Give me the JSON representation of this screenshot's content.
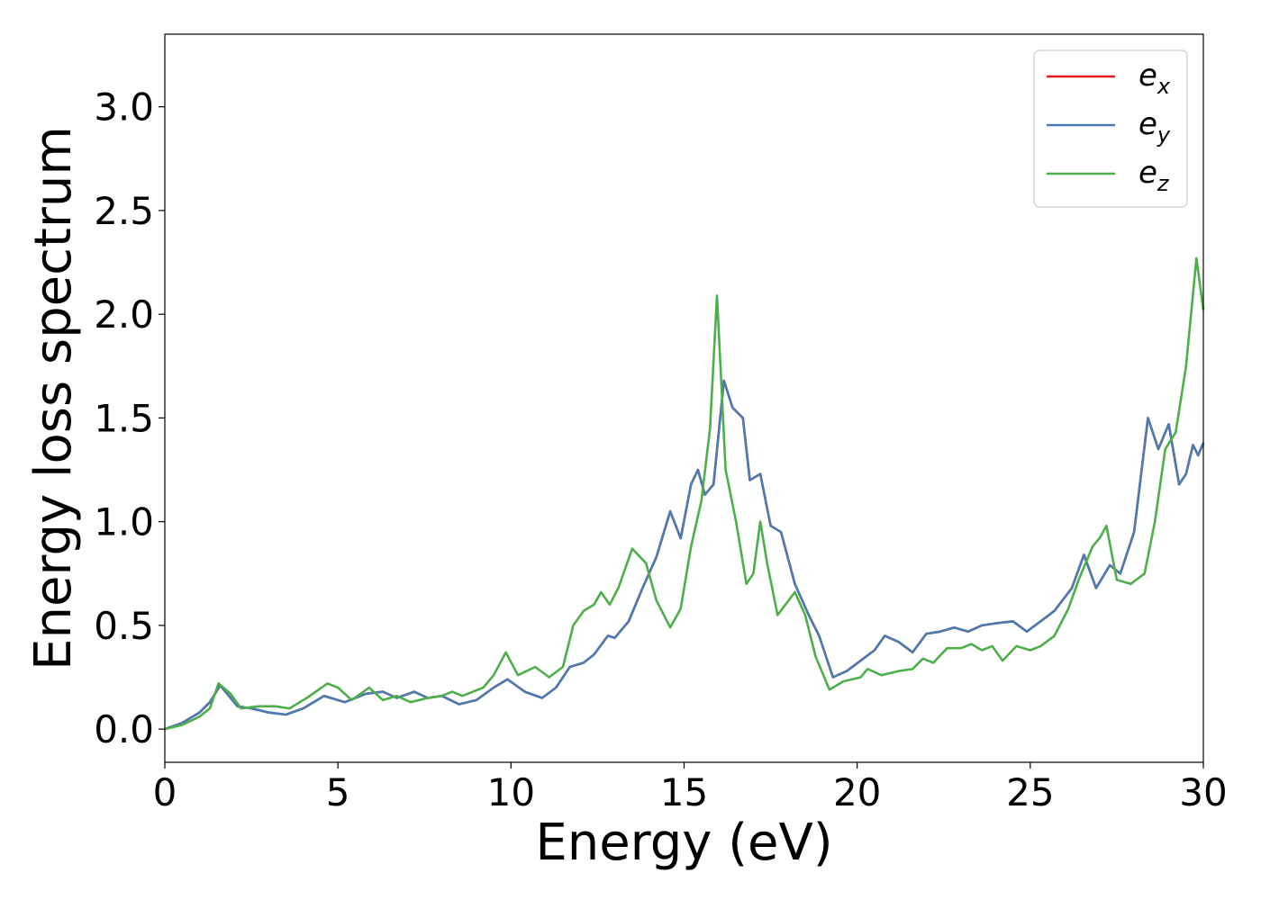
{
  "chart_data": {
    "type": "line",
    "title": "",
    "xlabel": "Energy (eV)",
    "ylabel": "Energy loss spectrum",
    "xlim": [
      0,
      30
    ],
    "ylim": [
      -0.16,
      3.35
    ],
    "xticks": [
      0,
      5,
      10,
      15,
      20,
      25,
      30
    ],
    "xtick_labels": [
      "0",
      "5",
      "10",
      "15",
      "20",
      "25",
      "30"
    ],
    "yticks": [
      0.0,
      0.5,
      1.0,
      1.5,
      2.0,
      2.5,
      3.0
    ],
    "ytick_labels": [
      "0.0",
      "0.5",
      "1.0",
      "1.5",
      "2.0",
      "2.5",
      "3.0"
    ],
    "grid": false,
    "legend_position": "top-right",
    "series": [
      {
        "name": "e_x",
        "legend_base": "e",
        "legend_sub": "x",
        "color": "#e41a1c",
        "points": [
          [
            0,
            0
          ],
          [
            0.5,
            0.03
          ],
          [
            1.0,
            0.08
          ],
          [
            1.3,
            0.13
          ],
          [
            1.6,
            0.21
          ],
          [
            1.8,
            0.17
          ],
          [
            2.1,
            0.11
          ],
          [
            2.5,
            0.1
          ],
          [
            3.0,
            0.08
          ],
          [
            3.5,
            0.07
          ],
          [
            4.0,
            0.1
          ],
          [
            4.6,
            0.16
          ],
          [
            5.2,
            0.13
          ],
          [
            5.8,
            0.17
          ],
          [
            6.3,
            0.18
          ],
          [
            6.7,
            0.15
          ],
          [
            7.2,
            0.18
          ],
          [
            7.6,
            0.15
          ],
          [
            8.0,
            0.16
          ],
          [
            8.5,
            0.12
          ],
          [
            9.0,
            0.14
          ],
          [
            9.5,
            0.2
          ],
          [
            9.9,
            0.24
          ],
          [
            10.4,
            0.18
          ],
          [
            10.9,
            0.15
          ],
          [
            11.3,
            0.2
          ],
          [
            11.7,
            0.3
          ],
          [
            12.1,
            0.32
          ],
          [
            12.4,
            0.36
          ],
          [
            12.8,
            0.45
          ],
          [
            13.0,
            0.44
          ],
          [
            13.4,
            0.52
          ],
          [
            13.8,
            0.68
          ],
          [
            14.2,
            0.83
          ],
          [
            14.6,
            1.05
          ],
          [
            14.9,
            0.92
          ],
          [
            15.2,
            1.18
          ],
          [
            15.4,
            1.25
          ],
          [
            15.6,
            1.13
          ],
          [
            15.85,
            1.18
          ],
          [
            16.15,
            1.68
          ],
          [
            16.4,
            1.55
          ],
          [
            16.7,
            1.5
          ],
          [
            16.9,
            1.2
          ],
          [
            17.2,
            1.23
          ],
          [
            17.5,
            0.98
          ],
          [
            17.8,
            0.95
          ],
          [
            18.2,
            0.7
          ],
          [
            18.6,
            0.55
          ],
          [
            18.9,
            0.45
          ],
          [
            19.3,
            0.25
          ],
          [
            19.7,
            0.28
          ],
          [
            20.1,
            0.33
          ],
          [
            20.5,
            0.38
          ],
          [
            20.8,
            0.45
          ],
          [
            21.2,
            0.42
          ],
          [
            21.6,
            0.37
          ],
          [
            22.0,
            0.46
          ],
          [
            22.4,
            0.47
          ],
          [
            22.8,
            0.49
          ],
          [
            23.2,
            0.47
          ],
          [
            23.6,
            0.5
          ],
          [
            24.0,
            0.51
          ],
          [
            24.5,
            0.52
          ],
          [
            24.9,
            0.47
          ],
          [
            25.3,
            0.52
          ],
          [
            25.7,
            0.57
          ],
          [
            26.2,
            0.68
          ],
          [
            26.55,
            0.84
          ],
          [
            26.9,
            0.68
          ],
          [
            27.3,
            0.79
          ],
          [
            27.6,
            0.75
          ],
          [
            28.0,
            0.95
          ],
          [
            28.4,
            1.5
          ],
          [
            28.7,
            1.35
          ],
          [
            29.0,
            1.47
          ],
          [
            29.3,
            1.18
          ],
          [
            29.5,
            1.23
          ],
          [
            29.7,
            1.37
          ],
          [
            29.85,
            1.32
          ],
          [
            30,
            1.38
          ]
        ]
      },
      {
        "name": "e_y",
        "legend_base": "e",
        "legend_sub": "y",
        "color": "#4a7cb3",
        "points": [
          [
            0,
            0
          ],
          [
            0.5,
            0.03
          ],
          [
            1.0,
            0.08
          ],
          [
            1.3,
            0.13
          ],
          [
            1.6,
            0.21
          ],
          [
            1.8,
            0.17
          ],
          [
            2.1,
            0.11
          ],
          [
            2.5,
            0.1
          ],
          [
            3.0,
            0.08
          ],
          [
            3.5,
            0.07
          ],
          [
            4.0,
            0.1
          ],
          [
            4.6,
            0.16
          ],
          [
            5.2,
            0.13
          ],
          [
            5.8,
            0.17
          ],
          [
            6.3,
            0.18
          ],
          [
            6.7,
            0.15
          ],
          [
            7.2,
            0.18
          ],
          [
            7.6,
            0.15
          ],
          [
            8.0,
            0.16
          ],
          [
            8.5,
            0.12
          ],
          [
            9.0,
            0.14
          ],
          [
            9.5,
            0.2
          ],
          [
            9.9,
            0.24
          ],
          [
            10.4,
            0.18
          ],
          [
            10.9,
            0.15
          ],
          [
            11.3,
            0.2
          ],
          [
            11.7,
            0.3
          ],
          [
            12.1,
            0.32
          ],
          [
            12.4,
            0.36
          ],
          [
            12.8,
            0.45
          ],
          [
            13.0,
            0.44
          ],
          [
            13.4,
            0.52
          ],
          [
            13.8,
            0.68
          ],
          [
            14.2,
            0.83
          ],
          [
            14.6,
            1.05
          ],
          [
            14.9,
            0.92
          ],
          [
            15.2,
            1.18
          ],
          [
            15.4,
            1.25
          ],
          [
            15.6,
            1.13
          ],
          [
            15.85,
            1.18
          ],
          [
            16.15,
            1.68
          ],
          [
            16.4,
            1.55
          ],
          [
            16.7,
            1.5
          ],
          [
            16.9,
            1.2
          ],
          [
            17.2,
            1.23
          ],
          [
            17.5,
            0.98
          ],
          [
            17.8,
            0.95
          ],
          [
            18.2,
            0.7
          ],
          [
            18.6,
            0.55
          ],
          [
            18.9,
            0.45
          ],
          [
            19.3,
            0.25
          ],
          [
            19.7,
            0.28
          ],
          [
            20.1,
            0.33
          ],
          [
            20.5,
            0.38
          ],
          [
            20.8,
            0.45
          ],
          [
            21.2,
            0.42
          ],
          [
            21.6,
            0.37
          ],
          [
            22.0,
            0.46
          ],
          [
            22.4,
            0.47
          ],
          [
            22.8,
            0.49
          ],
          [
            23.2,
            0.47
          ],
          [
            23.6,
            0.5
          ],
          [
            24.0,
            0.51
          ],
          [
            24.5,
            0.52
          ],
          [
            24.9,
            0.47
          ],
          [
            25.3,
            0.52
          ],
          [
            25.7,
            0.57
          ],
          [
            26.2,
            0.68
          ],
          [
            26.55,
            0.84
          ],
          [
            26.9,
            0.68
          ],
          [
            27.3,
            0.79
          ],
          [
            27.6,
            0.75
          ],
          [
            28.0,
            0.95
          ],
          [
            28.4,
            1.5
          ],
          [
            28.7,
            1.35
          ],
          [
            29.0,
            1.47
          ],
          [
            29.3,
            1.18
          ],
          [
            29.5,
            1.23
          ],
          [
            29.7,
            1.37
          ],
          [
            29.85,
            1.32
          ],
          [
            30,
            1.38
          ]
        ]
      },
      {
        "name": "e_z",
        "legend_base": "e",
        "legend_sub": "z",
        "color": "#4daf4a",
        "points": [
          [
            0,
            0
          ],
          [
            0.5,
            0.02
          ],
          [
            1.0,
            0.06
          ],
          [
            1.3,
            0.1
          ],
          [
            1.55,
            0.22
          ],
          [
            1.9,
            0.17
          ],
          [
            2.2,
            0.1
          ],
          [
            2.7,
            0.11
          ],
          [
            3.2,
            0.11
          ],
          [
            3.6,
            0.1
          ],
          [
            4.1,
            0.15
          ],
          [
            4.7,
            0.22
          ],
          [
            5.0,
            0.2
          ],
          [
            5.4,
            0.14
          ],
          [
            5.9,
            0.2
          ],
          [
            6.3,
            0.14
          ],
          [
            6.7,
            0.16
          ],
          [
            7.1,
            0.13
          ],
          [
            7.6,
            0.15
          ],
          [
            8.0,
            0.16
          ],
          [
            8.3,
            0.18
          ],
          [
            8.6,
            0.16
          ],
          [
            9.2,
            0.2
          ],
          [
            9.5,
            0.26
          ],
          [
            9.85,
            0.37
          ],
          [
            10.2,
            0.26
          ],
          [
            10.7,
            0.3
          ],
          [
            11.1,
            0.25
          ],
          [
            11.5,
            0.3
          ],
          [
            11.8,
            0.5
          ],
          [
            12.1,
            0.57
          ],
          [
            12.4,
            0.6
          ],
          [
            12.6,
            0.66
          ],
          [
            12.85,
            0.6
          ],
          [
            13.1,
            0.68
          ],
          [
            13.5,
            0.87
          ],
          [
            13.9,
            0.8
          ],
          [
            14.2,
            0.62
          ],
          [
            14.6,
            0.49
          ],
          [
            14.9,
            0.58
          ],
          [
            15.2,
            0.88
          ],
          [
            15.5,
            1.1
          ],
          [
            15.75,
            1.45
          ],
          [
            15.95,
            2.09
          ],
          [
            16.2,
            1.25
          ],
          [
            16.5,
            1.0
          ],
          [
            16.8,
            0.7
          ],
          [
            17.0,
            0.75
          ],
          [
            17.2,
            1.0
          ],
          [
            17.4,
            0.8
          ],
          [
            17.7,
            0.55
          ],
          [
            18.2,
            0.66
          ],
          [
            18.5,
            0.55
          ],
          [
            18.8,
            0.35
          ],
          [
            19.2,
            0.19
          ],
          [
            19.6,
            0.23
          ],
          [
            20.1,
            0.25
          ],
          [
            20.3,
            0.29
          ],
          [
            20.7,
            0.26
          ],
          [
            21.2,
            0.28
          ],
          [
            21.6,
            0.29
          ],
          [
            21.9,
            0.34
          ],
          [
            22.2,
            0.32
          ],
          [
            22.6,
            0.39
          ],
          [
            23.0,
            0.39
          ],
          [
            23.3,
            0.41
          ],
          [
            23.6,
            0.38
          ],
          [
            23.9,
            0.4
          ],
          [
            24.2,
            0.33
          ],
          [
            24.6,
            0.4
          ],
          [
            25.0,
            0.38
          ],
          [
            25.3,
            0.4
          ],
          [
            25.7,
            0.45
          ],
          [
            26.1,
            0.58
          ],
          [
            26.4,
            0.72
          ],
          [
            26.8,
            0.88
          ],
          [
            27.0,
            0.92
          ],
          [
            27.2,
            0.98
          ],
          [
            27.5,
            0.72
          ],
          [
            27.9,
            0.7
          ],
          [
            28.3,
            0.75
          ],
          [
            28.6,
            1.0
          ],
          [
            28.9,
            1.35
          ],
          [
            29.2,
            1.43
          ],
          [
            29.5,
            1.75
          ],
          [
            29.8,
            2.27
          ],
          [
            30,
            2.02
          ]
        ]
      }
    ]
  }
}
